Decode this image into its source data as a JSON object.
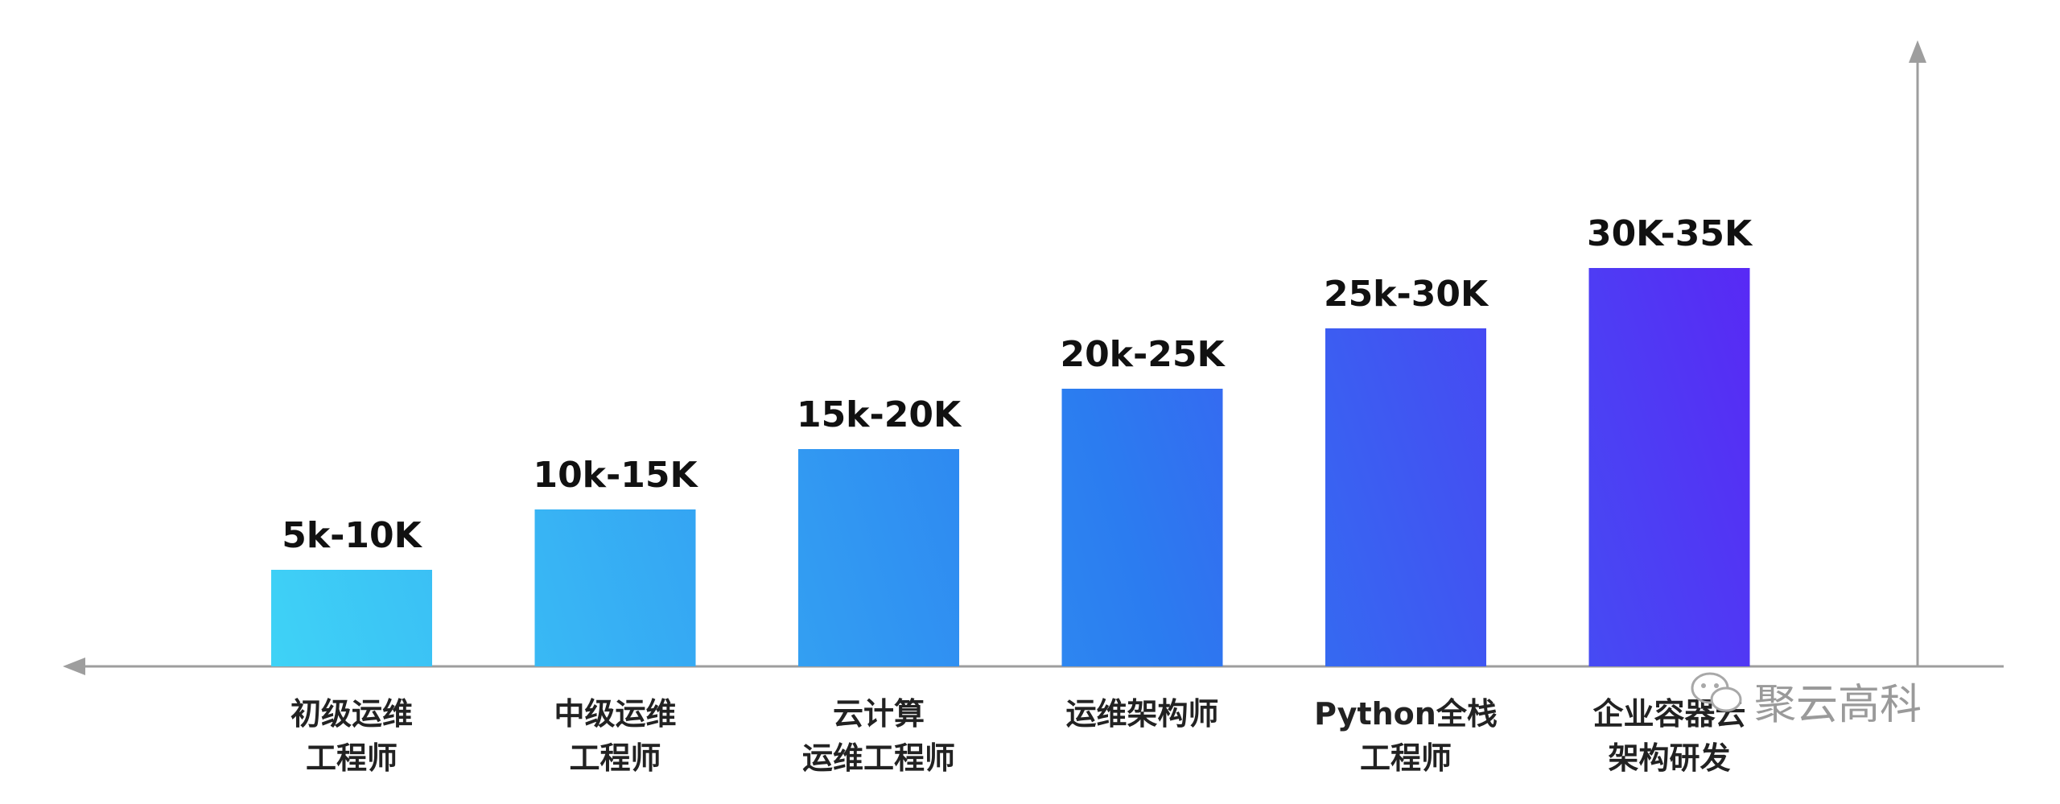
{
  "chart_data": {
    "type": "bar",
    "categories": [
      [
        "初级运维",
        "工程师"
      ],
      [
        "中级运维",
        "工程师"
      ],
      [
        "云计算",
        "运维工程师"
      ],
      [
        "运维架构师"
      ],
      [
        "Python全栈",
        "工程师"
      ],
      [
        "企业容器云",
        "架构研发"
      ]
    ],
    "value_labels": [
      "5k-10K",
      "10k-15K",
      "15k-20K",
      "20k-25K",
      "25k-30K",
      "30K-35K"
    ],
    "values": [
      [
        5,
        10
      ],
      [
        10,
        15
      ],
      [
        15,
        20
      ],
      [
        20,
        25
      ],
      [
        25,
        30
      ],
      [
        30,
        35
      ]
    ],
    "unit": "K",
    "bar_color_start": "#3fd3f6",
    "bar_color_end": "#5a26f5",
    "axis_color": "#9e9e9e",
    "grid": false,
    "legend": "none"
  },
  "watermark": {
    "icon": "wechat-icon",
    "text": "聚云高科"
  }
}
